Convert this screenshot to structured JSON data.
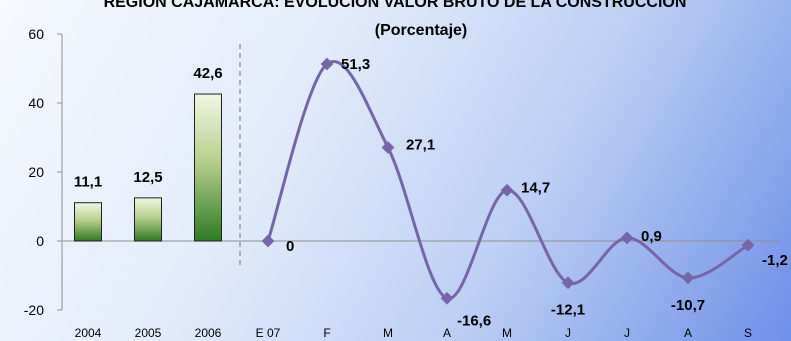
{
  "chart_data": {
    "type": "bar+line",
    "title": "REGIÓN CAJAMARCA: EVOLUCIÓN VALOR BRUTO DE LA  CONSTRUCCIÓN",
    "subtitle": "(Porcentaje)",
    "ylim": [
      -20,
      60
    ],
    "yticks": [
      "-20",
      "0",
      "20",
      "40",
      "60"
    ],
    "grid": false,
    "bar_series": {
      "categories": [
        "2004",
        "2005",
        "2006"
      ],
      "values": [
        11.1,
        12.5,
        42.6
      ],
      "labels": [
        "11,1",
        "12,5",
        "42,6"
      ]
    },
    "line_series": {
      "categories": [
        "E 07",
        "F",
        "M",
        "A",
        "M",
        "J",
        "J",
        "A",
        "S"
      ],
      "values": [
        0,
        51.3,
        27.1,
        -16.6,
        14.7,
        -12.1,
        0.9,
        -10.7,
        -1.2
      ],
      "labels": [
        "0",
        "51,3",
        "27,1",
        "-16,6",
        "14,7",
        "-12,1",
        "0,9",
        "-10,7",
        "-1,2"
      ]
    },
    "colors": {
      "line": "#7466a8",
      "bar_top": "#f2f7e2",
      "bar_bottom": "#2f7a24",
      "axis": "#8f8f8f"
    }
  }
}
